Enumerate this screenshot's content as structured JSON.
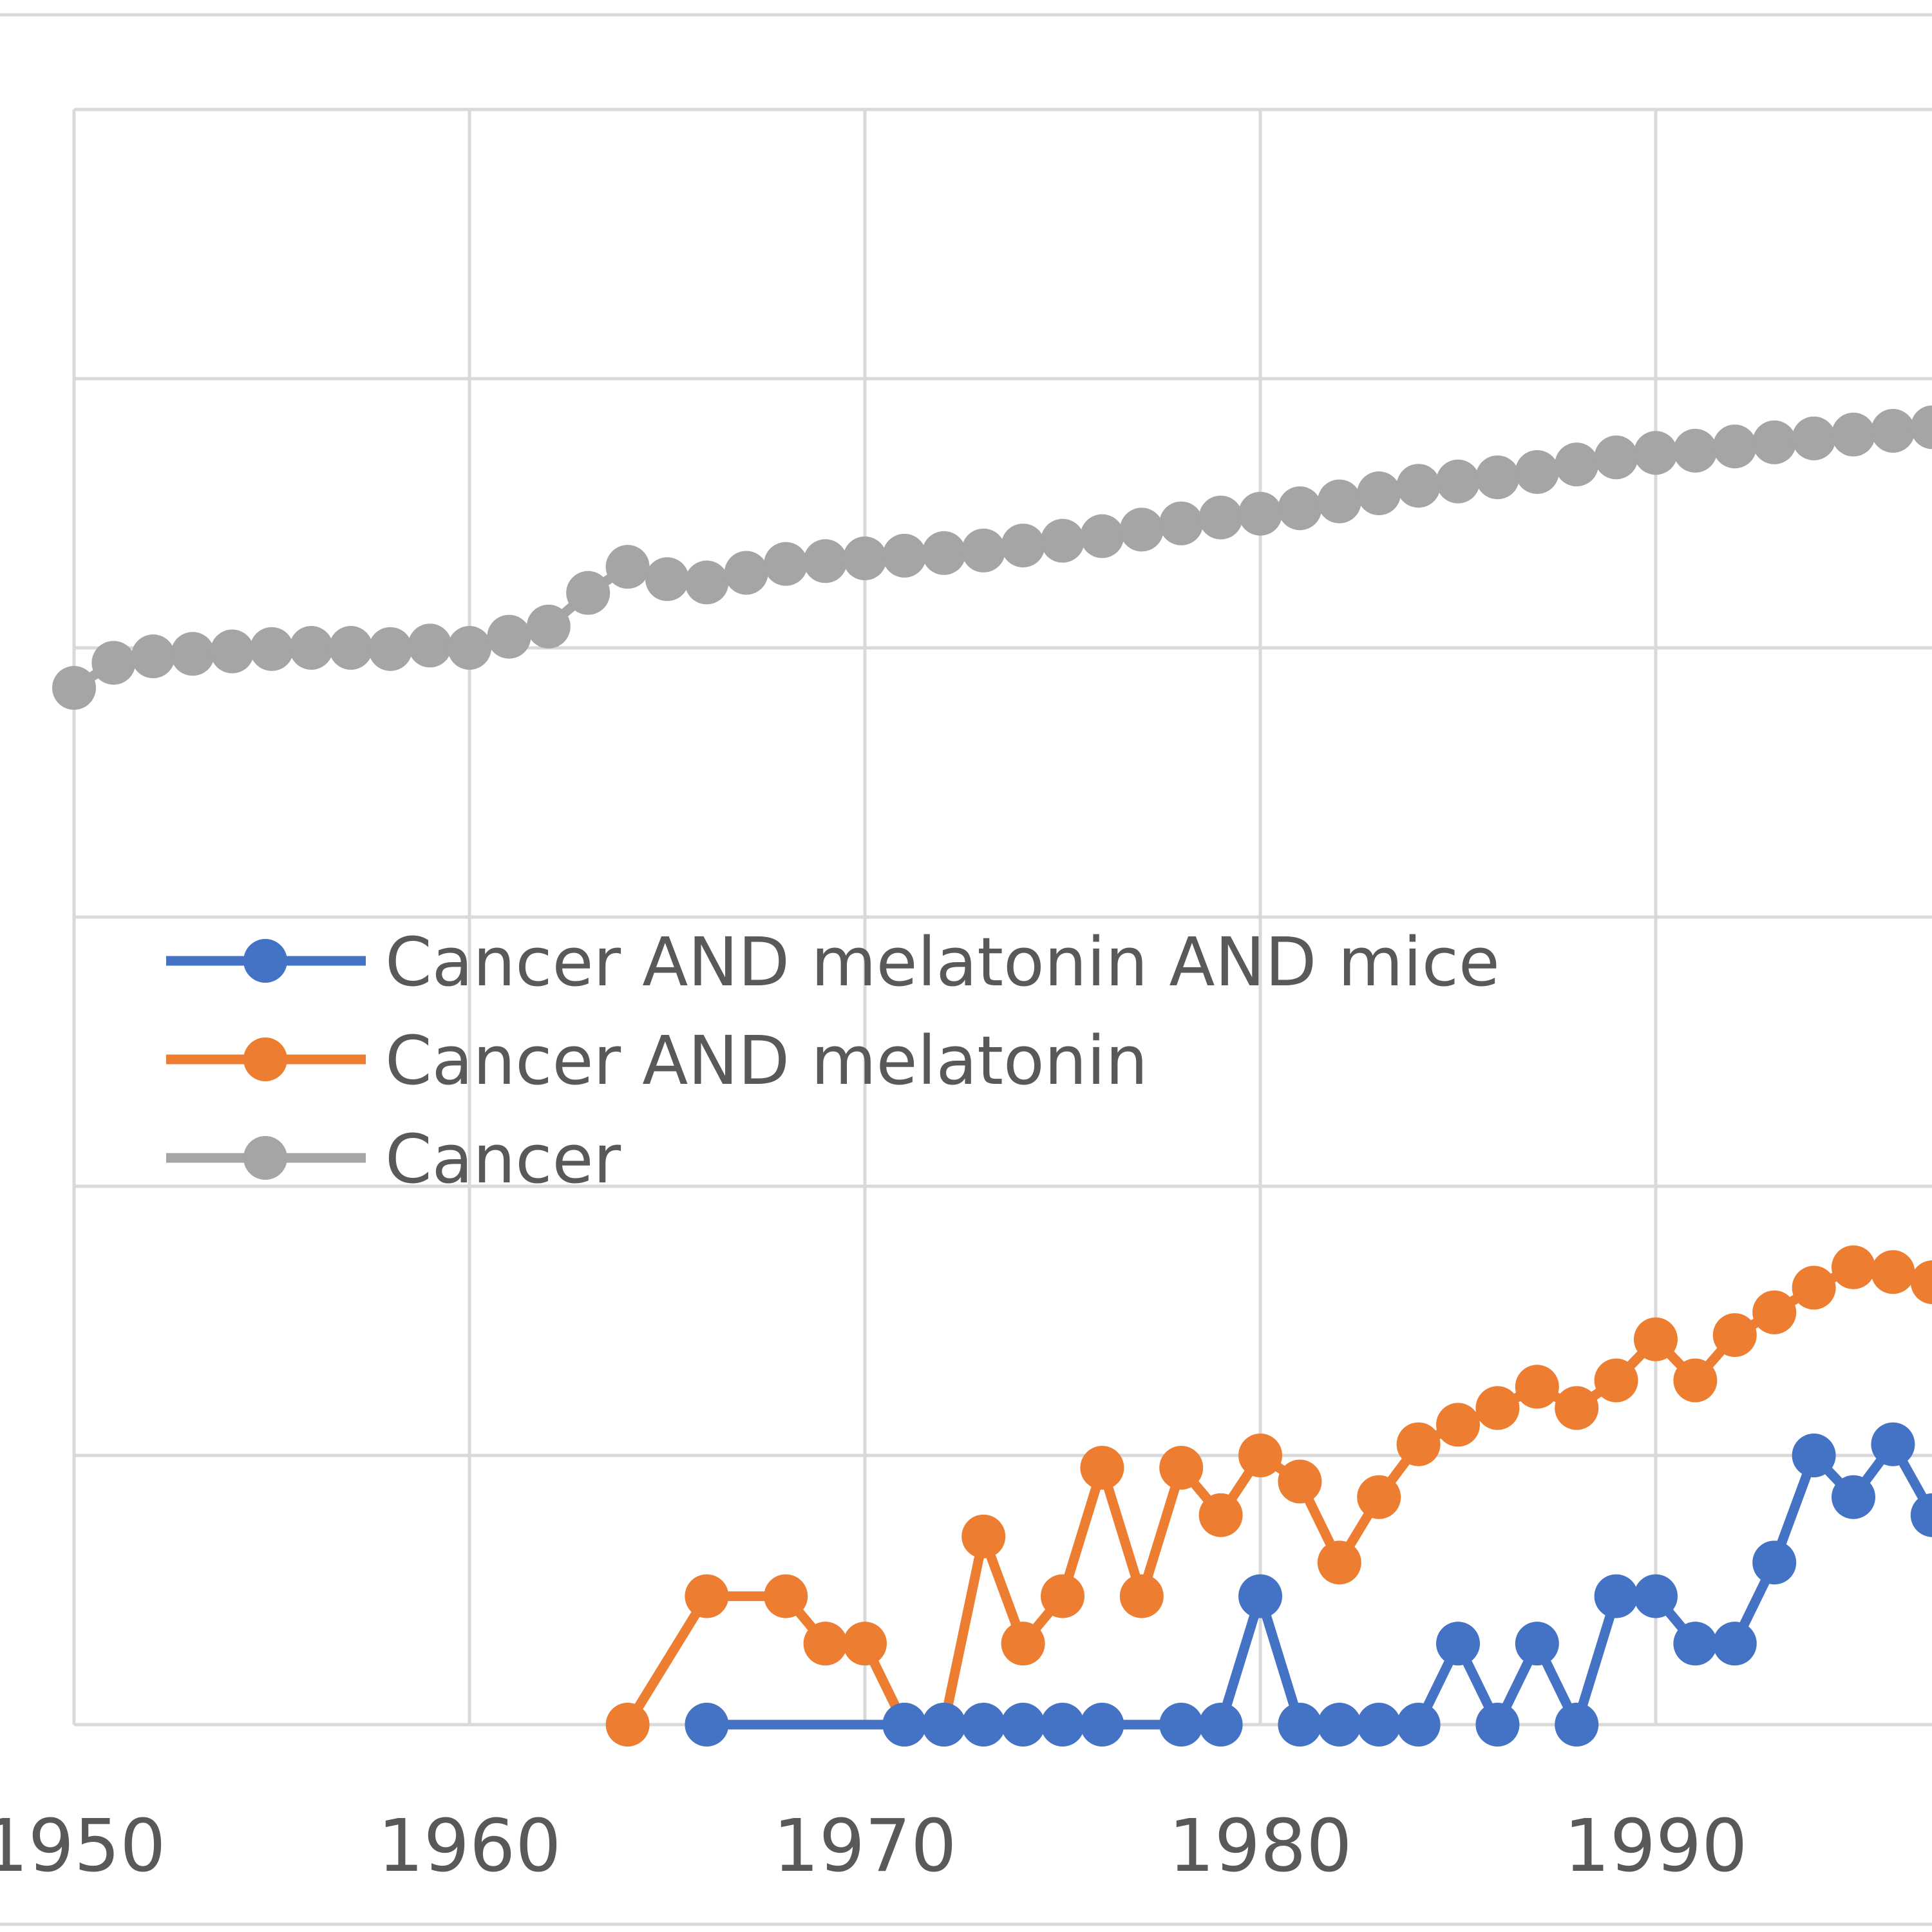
{
  "chart_data": {
    "type": "line",
    "title": "",
    "xlabel": "",
    "ylabel": "",
    "x_scale": "linear",
    "y_scale": "log",
    "xlim": [
      1950,
      1998
    ],
    "ylim": [
      1,
      1000000
    ],
    "x_ticks": [
      "1950",
      "1960",
      "1970",
      "1980",
      "1990"
    ],
    "y_tick_labels_visible": false,
    "grid": true,
    "legend_placement": "center-left",
    "series": [
      {
        "name": "Cancer AND melatonin AND mice",
        "color": "#4472C4",
        "points": [
          [
            1966,
            1
          ],
          [
            1971,
            1
          ],
          [
            1972,
            1
          ],
          [
            1973,
            1
          ],
          [
            1974,
            1
          ],
          [
            1975,
            1
          ],
          [
            1976,
            1
          ],
          [
            1978,
            1
          ],
          [
            1979,
            1
          ],
          [
            1980,
            3
          ],
          [
            1981,
            1
          ],
          [
            1982,
            1
          ],
          [
            1983,
            1
          ],
          [
            1984,
            1
          ],
          [
            1985,
            2
          ],
          [
            1986,
            1
          ],
          [
            1987,
            2
          ],
          [
            1988,
            1
          ],
          [
            1989,
            3
          ],
          [
            1990,
            3
          ],
          [
            1991,
            2
          ],
          [
            1992,
            2
          ],
          [
            1993,
            4
          ],
          [
            1994,
            10
          ],
          [
            1995,
            7
          ],
          [
            1996,
            11
          ],
          [
            1997,
            6
          ]
        ]
      },
      {
        "name": "Cancer AND melatonin",
        "color": "#ED7D31",
        "points": [
          [
            1964,
            1
          ],
          [
            1966,
            3
          ],
          [
            1968,
            3
          ],
          [
            1969,
            2
          ],
          [
            1970,
            2
          ],
          [
            1971,
            1
          ],
          [
            1972,
            1
          ],
          [
            1973,
            5
          ],
          [
            1974,
            2
          ],
          [
            1975,
            3
          ],
          [
            1976,
            9
          ],
          [
            1977,
            3
          ],
          [
            1978,
            9
          ],
          [
            1979,
            6
          ],
          [
            1980,
            10
          ],
          [
            1981,
            8
          ],
          [
            1982,
            4
          ],
          [
            1983,
            7
          ],
          [
            1984,
            11
          ],
          [
            1985,
            13
          ],
          [
            1986,
            15
          ],
          [
            1987,
            18
          ],
          [
            1988,
            15
          ],
          [
            1989,
            19
          ],
          [
            1990,
            27
          ],
          [
            1991,
            19
          ],
          [
            1992,
            28
          ],
          [
            1993,
            34
          ],
          [
            1994,
            42
          ],
          [
            1995,
            50
          ],
          [
            1996,
            48
          ],
          [
            1997,
            44
          ]
        ]
      },
      {
        "name": "Cancer",
        "color": "#A5A5A5",
        "points": [
          [
            1950,
            7100
          ],
          [
            1951,
            8800
          ],
          [
            1952,
            9300
          ],
          [
            1953,
            9500
          ],
          [
            1954,
            9700
          ],
          [
            1955,
            9900
          ],
          [
            1956,
            10000
          ],
          [
            1957,
            10000
          ],
          [
            1958,
            9900
          ],
          [
            1959,
            10200
          ],
          [
            1960,
            10000
          ],
          [
            1961,
            11000
          ],
          [
            1962,
            12000
          ],
          [
            1963,
            16000
          ],
          [
            1964,
            20000
          ],
          [
            1965,
            18000
          ],
          [
            1966,
            17500
          ],
          [
            1967,
            19000
          ],
          [
            1968,
            20500
          ],
          [
            1969,
            21000
          ],
          [
            1970,
            21500
          ],
          [
            1971,
            22000
          ],
          [
            1972,
            22500
          ],
          [
            1973,
            23000
          ],
          [
            1974,
            24000
          ],
          [
            1975,
            25000
          ],
          [
            1976,
            26000
          ],
          [
            1977,
            27500
          ],
          [
            1978,
            29000
          ],
          [
            1979,
            30500
          ],
          [
            1980,
            31500
          ],
          [
            1981,
            33000
          ],
          [
            1982,
            35000
          ],
          [
            1983,
            37500
          ],
          [
            1984,
            40000
          ],
          [
            1985,
            41500
          ],
          [
            1986,
            43000
          ],
          [
            1987,
            45000
          ],
          [
            1988,
            48000
          ],
          [
            1989,
            51000
          ],
          [
            1990,
            53000
          ],
          [
            1991,
            54000
          ],
          [
            1992,
            56000
          ],
          [
            1993,
            58000
          ],
          [
            1994,
            60000
          ],
          [
            1995,
            62000
          ],
          [
            1996,
            64000
          ],
          [
            1997,
            66000
          ]
        ]
      }
    ]
  }
}
